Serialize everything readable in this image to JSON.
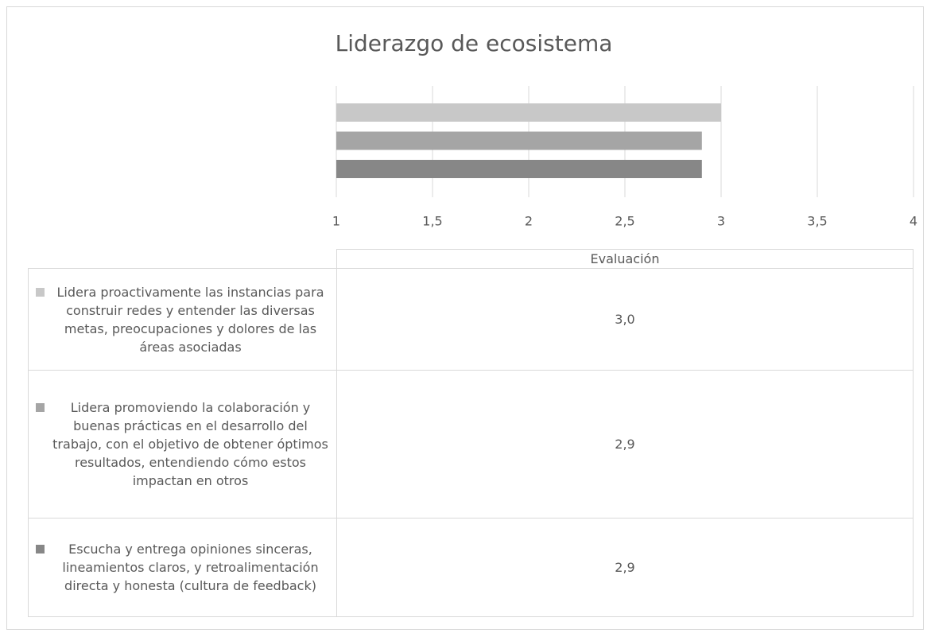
{
  "chart_data": {
    "type": "bar",
    "orientation": "horizontal",
    "title": "Liderazgo de ecosistema",
    "categories": [
      "Evaluación"
    ],
    "series": [
      {
        "name": "Lidera proactivamente las instancias para construir redes y entender las diversas metas, preocupaciones y dolores de las áreas asociadas",
        "color": "#c8c8c8",
        "values": [
          3.0
        ],
        "value_labels": [
          "3,0"
        ]
      },
      {
        "name": "Lidera promoviendo la colaboración y buenas prácticas en el desarrollo del trabajo, con el objetivo de obtener óptimos resultados, entendiendo cómo estos impactan en otros",
        "color": "#a5a5a5",
        "values": [
          2.9
        ],
        "value_labels": [
          "2,9"
        ]
      },
      {
        "name": "Escucha y entrega opiniones sinceras, lineamientos claros, y retroalimentación directa y honesta (cultura de feedback)",
        "color": "#878787",
        "values": [
          2.9
        ],
        "value_labels": [
          "2,9"
        ]
      }
    ],
    "xlim": [
      1,
      4
    ],
    "xticks": [
      1,
      {
        "value": 1.5,
        "label": "1,5"
      },
      2,
      {
        "value": 2.5,
        "label": "2,5"
      },
      3,
      {
        "value": 3.5,
        "label": "3,5"
      },
      4
    ],
    "grid": true
  }
}
